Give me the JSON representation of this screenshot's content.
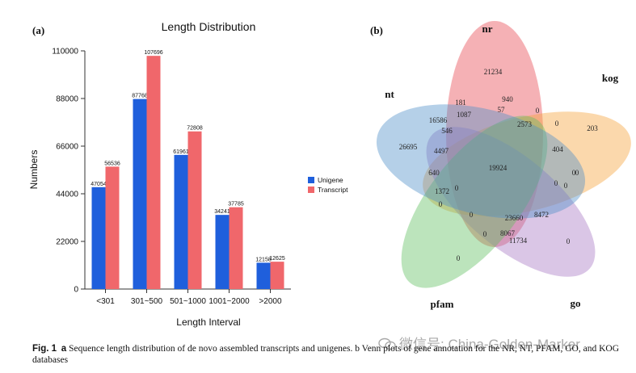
{
  "panel_a": {
    "label": "(a)",
    "chart_data": {
      "type": "bar",
      "title": "Length Distribution",
      "xlabel": "Length Interval",
      "ylabel": "Numbers",
      "categories": [
        "<301",
        "301~500",
        "501~1000",
        "1001~2000",
        ">2000"
      ],
      "series": [
        {
          "name": "Unigene",
          "color": "#1f5fdc",
          "values": [
            47054,
            87768,
            61961,
            34241,
            12158
          ],
          "labels": [
            "47054",
            "87768",
            "61961",
            "34241",
            "12158"
          ]
        },
        {
          "name": "Transcript",
          "color": "#f0676b",
          "values": [
            56536,
            107696,
            72808,
            37785,
            12625
          ],
          "labels": [
            "56536",
            "107696",
            "72808",
            "37785",
            "12625"
          ]
        }
      ],
      "ylim": [
        0,
        110000
      ],
      "yticks": [
        0,
        22000,
        44000,
        66000,
        88000,
        110000
      ],
      "ytick_labels": [
        "0",
        "22000",
        "44000",
        "66000",
        "88000",
        "110000"
      ],
      "legend_position": "right"
    }
  },
  "panel_b": {
    "label": "(b)",
    "sets": [
      {
        "name": "nr",
        "color": "#e8464f"
      },
      {
        "name": "kog",
        "color": "#f5a13a"
      },
      {
        "name": "go",
        "color": "#a877c4"
      },
      {
        "name": "pfam",
        "color": "#5fbf5f"
      },
      {
        "name": "nt",
        "color": "#4f8fc8"
      }
    ],
    "region_counts": [
      "21234",
      "203",
      "0",
      "0",
      "26695",
      "181",
      "940",
      "1087",
      "57",
      "0",
      "16586",
      "546",
      "2573",
      "0",
      "4497",
      "404",
      "640",
      "19924",
      "0",
      "1372",
      "0",
      "0",
      "0",
      "0",
      "0",
      "23660",
      "8472",
      "0",
      "8067",
      "11734",
      "0"
    ]
  },
  "caption": {
    "fig_label": "Fig. 1",
    "part_a": "a",
    "text": "Sequence length distribution of de novo assembled transcripts and unigenes. b Venn plots of gene annotation for the NR, NT, PFAM, GO, and KOG databases"
  },
  "watermark": {
    "text": "微信号: China-Golden-Marker"
  }
}
